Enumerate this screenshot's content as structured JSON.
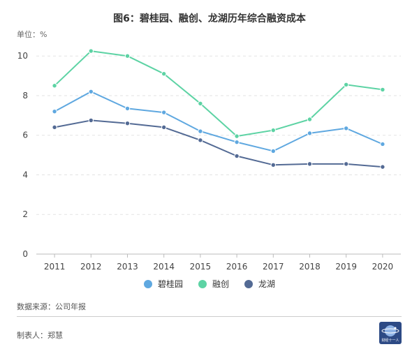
{
  "header": {
    "title": "图6：碧桂园、融创、龙湖历年综合融资成本",
    "unit": "单位：%"
  },
  "footer": {
    "source": "数据来源：公司年报",
    "author": "制表人：郑慧",
    "logo_text": "财经十一人"
  },
  "chart_data": {
    "type": "line",
    "categories": [
      "2011",
      "2012",
      "2013",
      "2014",
      "2015",
      "2016",
      "2017",
      "2018",
      "2019",
      "2020"
    ],
    "series": [
      {
        "name": "碧桂园",
        "color": "#5fa8e0",
        "values": [
          7.2,
          8.2,
          7.35,
          7.15,
          6.2,
          5.65,
          5.2,
          6.1,
          6.35,
          5.55
        ]
      },
      {
        "name": "融创",
        "color": "#5dd3a4",
        "values": [
          8.5,
          10.25,
          10.0,
          9.1,
          7.6,
          5.95,
          6.25,
          6.8,
          8.55,
          8.3
        ]
      },
      {
        "name": "龙湖",
        "color": "#536a94",
        "values": [
          6.4,
          6.75,
          6.6,
          6.4,
          5.75,
          4.95,
          4.5,
          4.55,
          4.55,
          4.4
        ]
      }
    ],
    "yticks": [
      0,
      2,
      4,
      6,
      8,
      10
    ],
    "ylim": [
      0,
      10.5
    ],
    "grid": true,
    "legend_position": "bottom"
  }
}
